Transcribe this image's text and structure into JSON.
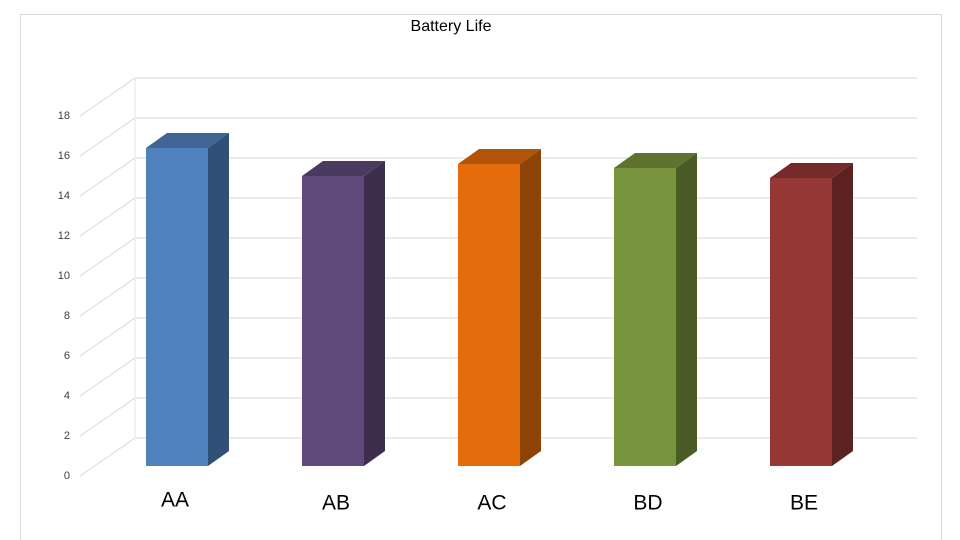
{
  "chart_data": {
    "type": "bar3d",
    "title": "Battery Life",
    "categories": [
      "AA",
      "AB",
      "AC",
      "BD",
      "BE"
    ],
    "values": [
      15.9,
      14.5,
      15.1,
      14.9,
      14.4
    ],
    "colors": [
      "#4f81bd",
      "#604a7b",
      "#e46c0a",
      "#77933c",
      "#953735"
    ],
    "ylim": [
      0,
      18
    ],
    "yticks": [
      0,
      2,
      4,
      6,
      8,
      10,
      12,
      14,
      16,
      18
    ],
    "grid": true
  }
}
